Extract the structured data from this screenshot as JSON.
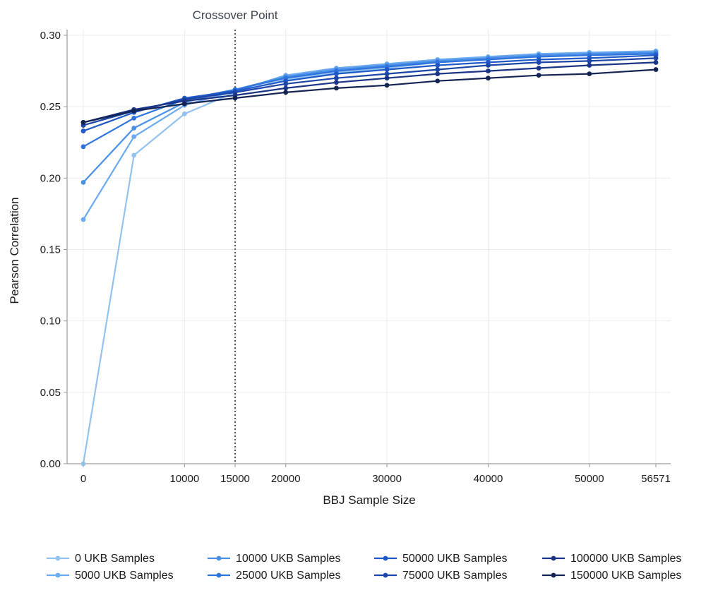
{
  "chart_data": {
    "type": "line",
    "xlabel": "BBJ Sample Size",
    "ylabel": "Pearson Correlation",
    "xlim": [
      -3000,
      58000
    ],
    "ylim": [
      0,
      0.3
    ],
    "x_ticks": [
      0,
      10000,
      15000,
      20000,
      30000,
      40000,
      50000,
      56571
    ],
    "x_tick_labels": [
      "0",
      "10000",
      "15000",
      "20000",
      "30000",
      "40000",
      "50000",
      "56571"
    ],
    "y_ticks": [
      0.0,
      0.05,
      0.1,
      0.15,
      0.2,
      0.25,
      0.3
    ],
    "y_tick_labels": [
      "0.00",
      "0.05",
      "0.10",
      "0.15",
      "0.20",
      "0.25",
      "0.30"
    ],
    "grid": true,
    "legend_position": "bottom",
    "annotations": [
      {
        "type": "vertical-dotted-line",
        "x": 15000,
        "label": "Crossover Point"
      }
    ],
    "x": [
      0,
      5000,
      10000,
      15000,
      20000,
      25000,
      30000,
      35000,
      40000,
      45000,
      50000,
      56571
    ],
    "series": [
      {
        "name": "0 UKB Samples",
        "color": "#93c2ef",
        "values": [
          0.0,
          0.216,
          0.245,
          0.26,
          0.269,
          0.274,
          0.277,
          0.281,
          0.284,
          0.286,
          0.287,
          0.289
        ]
      },
      {
        "name": "5000 UKB Samples",
        "color": "#6aaaf0",
        "values": [
          0.171,
          0.229,
          0.251,
          0.261,
          0.272,
          0.277,
          0.28,
          0.283,
          0.285,
          0.287,
          0.288,
          0.289
        ]
      },
      {
        "name": "10000 UKB Samples",
        "color": "#4a8fe6",
        "values": [
          0.197,
          0.235,
          0.253,
          0.262,
          0.271,
          0.276,
          0.279,
          0.282,
          0.284,
          0.286,
          0.287,
          0.288
        ]
      },
      {
        "name": "25000 UKB Samples",
        "color": "#2f74dc",
        "values": [
          0.222,
          0.242,
          0.255,
          0.262,
          0.27,
          0.275,
          0.278,
          0.281,
          0.283,
          0.285,
          0.286,
          0.287
        ]
      },
      {
        "name": "50000 UKB Samples",
        "color": "#1f59c9",
        "values": [
          0.233,
          0.246,
          0.256,
          0.261,
          0.268,
          0.273,
          0.276,
          0.279,
          0.281,
          0.283,
          0.284,
          0.286
        ]
      },
      {
        "name": "75000 UKB Samples",
        "color": "#1c45a8",
        "values": [
          0.237,
          0.247,
          0.255,
          0.26,
          0.266,
          0.27,
          0.273,
          0.276,
          0.279,
          0.281,
          0.282,
          0.284
        ]
      },
      {
        "name": "100000 UKB Samples",
        "color": "#1a3586",
        "values": [
          0.239,
          0.248,
          0.254,
          0.258,
          0.263,
          0.267,
          0.27,
          0.273,
          0.275,
          0.277,
          0.279,
          0.281
        ]
      },
      {
        "name": "150000 UKB Samples",
        "color": "#132452",
        "values": [
          0.239,
          0.247,
          0.252,
          0.256,
          0.26,
          0.263,
          0.265,
          0.268,
          0.27,
          0.272,
          0.273,
          0.276
        ]
      }
    ]
  },
  "colors": {
    "grid": "#ececec",
    "axis": "#9a9a9a",
    "crossover_line": "#555555"
  }
}
